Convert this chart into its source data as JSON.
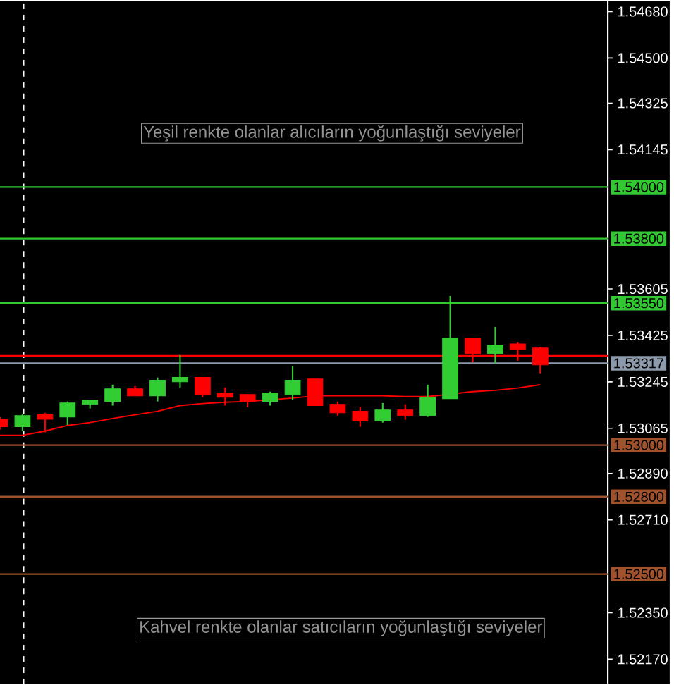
{
  "chart_data": {
    "type": "candlestick",
    "categories": [
      null,
      null,
      null,
      null,
      null,
      null,
      null,
      null,
      null,
      null,
      null,
      null,
      null,
      null,
      null,
      null,
      null,
      null,
      null,
      null,
      null,
      null,
      null,
      null,
      null
    ],
    "ohlc": [
      [
        1.531,
        1.53109,
        1.5306,
        1.53071
      ],
      [
        1.53071,
        1.5312,
        1.53054,
        1.53114
      ],
      [
        1.5312,
        1.53125,
        1.53049,
        1.531
      ],
      [
        1.53109,
        1.53169,
        1.53078,
        1.53163
      ],
      [
        1.53158,
        1.53174,
        1.53142,
        1.53174
      ],
      [
        1.53169,
        1.53234,
        1.53153,
        1.53218
      ],
      [
        1.53218,
        1.53229,
        1.53191,
        1.53191
      ],
      [
        1.53191,
        1.53262,
        1.53169,
        1.53251
      ],
      [
        1.53245,
        1.53349,
        1.53223,
        1.53262
      ],
      [
        1.53262,
        1.53262,
        1.53185,
        1.53196
      ],
      [
        1.53202,
        1.53223,
        1.53153,
        1.53185
      ],
      [
        1.53196,
        1.53196,
        1.53147,
        1.53169
      ],
      [
        1.53169,
        1.53207,
        1.53153,
        1.53202
      ],
      [
        1.53196,
        1.53305,
        1.53174,
        1.53251
      ],
      [
        1.53256,
        1.53256,
        1.53153,
        1.53153
      ],
      [
        1.53158,
        1.53169,
        1.53114,
        1.53125
      ],
      [
        1.53131,
        1.53147,
        1.53071,
        1.53093
      ],
      [
        1.53093,
        1.53163,
        1.53087,
        1.53136
      ],
      [
        1.53136,
        1.53158,
        1.53098,
        1.53114
      ],
      [
        1.53114,
        1.53234,
        1.53109,
        1.53185
      ],
      [
        1.5318,
        1.53578,
        1.5318,
        1.53414
      ],
      [
        1.53414,
        1.53414,
        1.53321,
        1.53354
      ],
      [
        1.53354,
        1.53458,
        1.53316,
        1.53387
      ],
      [
        1.53392,
        1.53398,
        1.53327,
        1.53371
      ],
      [
        1.53376,
        1.53381,
        1.53278,
        1.53311
      ]
    ],
    "colors": [
      "#ff0000",
      "#32cd32",
      "#ff0000",
      "#32cd32",
      "#32cd32",
      "#32cd32",
      "#ff0000",
      "#32cd32",
      "#32cd32",
      "#ff0000",
      "#ff0000",
      "#ff0000",
      "#32cd32",
      "#32cd32",
      "#ff0000",
      "#ff0000",
      "#ff0000",
      "#32cd32",
      "#ff0000",
      "#32cd32",
      "#32cd32",
      "#ff0000",
      "#32cd32",
      "#ff0000",
      "#ff0000"
    ],
    "series": [
      {
        "type": "line",
        "color": "#ff0000",
        "values": [
          1.53038,
          1.53038,
          1.53054,
          1.53076,
          1.53087,
          1.53103,
          1.53117,
          1.53131,
          1.53153,
          1.53161,
          1.53166,
          1.53169,
          null,
          1.53182,
          1.53191,
          1.53191,
          1.53191,
          1.53191,
          1.53188,
          1.53188,
          null,
          1.53207,
          1.53212,
          1.53221,
          1.53234
        ]
      }
    ],
    "ylim": [
      1.52073,
      1.54722
    ],
    "yticks": [
      {
        "value": 1.5468,
        "label": "1.54680"
      },
      {
        "value": 1.545,
        "label": "1.54500"
      },
      {
        "value": 1.54325,
        "label": "1.54325"
      },
      {
        "value": 1.54145,
        "label": "1.54145"
      },
      {
        "value": 1.53605,
        "label": "1.53605"
      },
      {
        "value": 1.53425,
        "label": "1.53425"
      },
      {
        "value": 1.53245,
        "label": "1.53245"
      },
      {
        "value": 1.53065,
        "label": "1.53065"
      },
      {
        "value": 1.5289,
        "label": "1.52890"
      },
      {
        "value": 1.5271,
        "label": "1.52710"
      },
      {
        "value": 1.5235,
        "label": "1.52350"
      },
      {
        "value": 1.5217,
        "label": "1.52170"
      }
    ],
    "tick_labels": "y",
    "ref_lines": [
      {
        "axis": "y",
        "value": 1.54,
        "label": "1.54000",
        "color": "#32c832"
      },
      {
        "axis": "y",
        "value": 1.538,
        "label": "1.53800",
        "color": "#32c832"
      },
      {
        "axis": "y",
        "value": 1.5355,
        "label": "1.53550",
        "color": "#32c832"
      },
      {
        "axis": "y",
        "value": 1.53346,
        "color": "#ff0000"
      },
      {
        "axis": "y",
        "value": 1.53317,
        "label": "1.53317",
        "color": "#8c9aab"
      },
      {
        "axis": "y",
        "value": 1.53,
        "label": "1.53000",
        "color": "#a0522d"
      },
      {
        "axis": "y",
        "value": 1.528,
        "label": "1.52800",
        "color": "#a0522d"
      },
      {
        "axis": "y",
        "value": 1.525,
        "label": "1.52500",
        "color": "#a0522d"
      }
    ],
    "annotations": [
      "Yeşil renkte olanlar alıcıların yoğunlaştığı seviyeler",
      "Kahvel renkte olanlar satıcıların yoğunlaştığı seviyeler"
    ]
  }
}
